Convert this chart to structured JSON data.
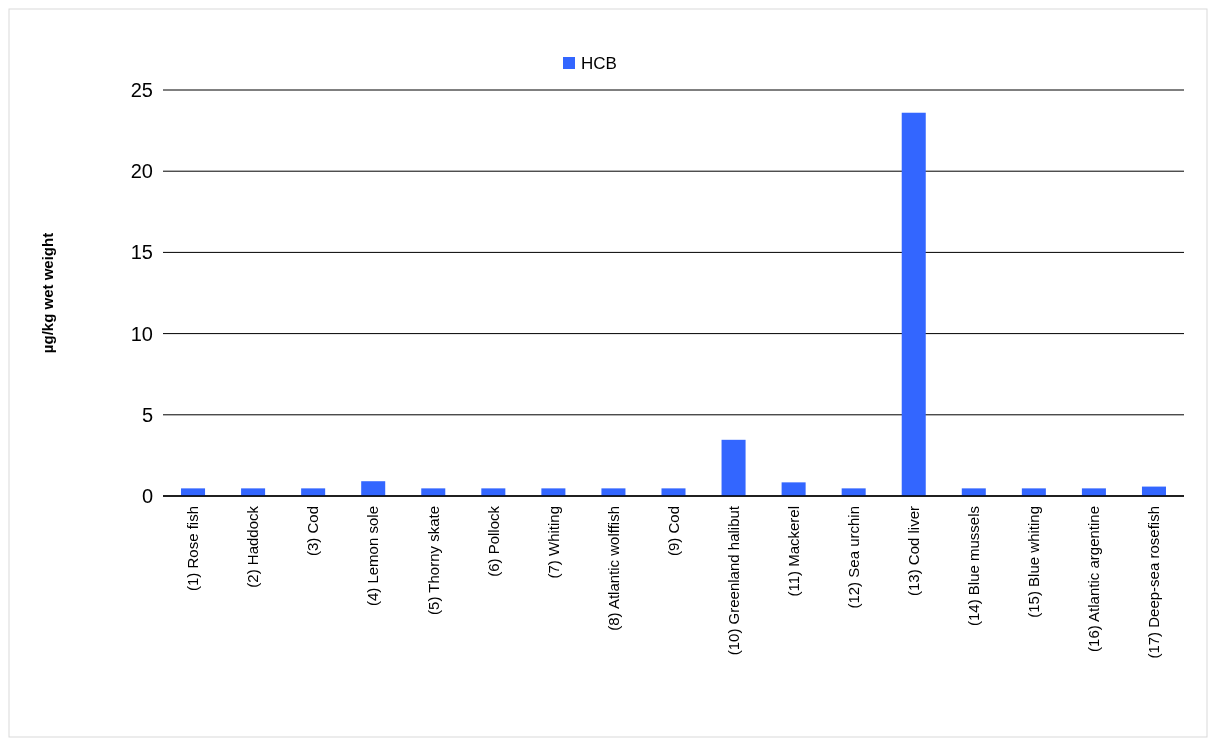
{
  "chart_data": {
    "type": "bar",
    "ylabel": "µg/kg wet weight",
    "categories": [
      "(1) Rose fish",
      "(2) Haddock",
      "(3) Cod",
      "(4) Lemon sole",
      "(5) Thorny skate",
      "(6) Pollock",
      "(7) Whiting",
      "(8) Atlantic wolffish",
      "(9) Cod",
      "(10) Greenland halibut",
      "(11) Mackerel",
      "(12) Sea urchin",
      "(13) Cod liver",
      "(14) Blue mussels",
      "(15) Blue whiting",
      "(16) Atlantic argentine",
      "(17) Deep-sea rosefish"
    ],
    "series": [
      {
        "name": "HCB",
        "color": "#3366ff",
        "values": [
          0.47,
          0.47,
          0.47,
          0.91,
          0.47,
          0.47,
          0.47,
          0.47,
          0.47,
          3.46,
          0.84,
          0.47,
          23.6,
          0.47,
          0.47,
          0.47,
          0.58
        ]
      }
    ],
    "ylim": [
      0,
      25
    ],
    "yticks": [
      0,
      5,
      10,
      15,
      20,
      25
    ],
    "grid": "y",
    "legend": "top"
  }
}
